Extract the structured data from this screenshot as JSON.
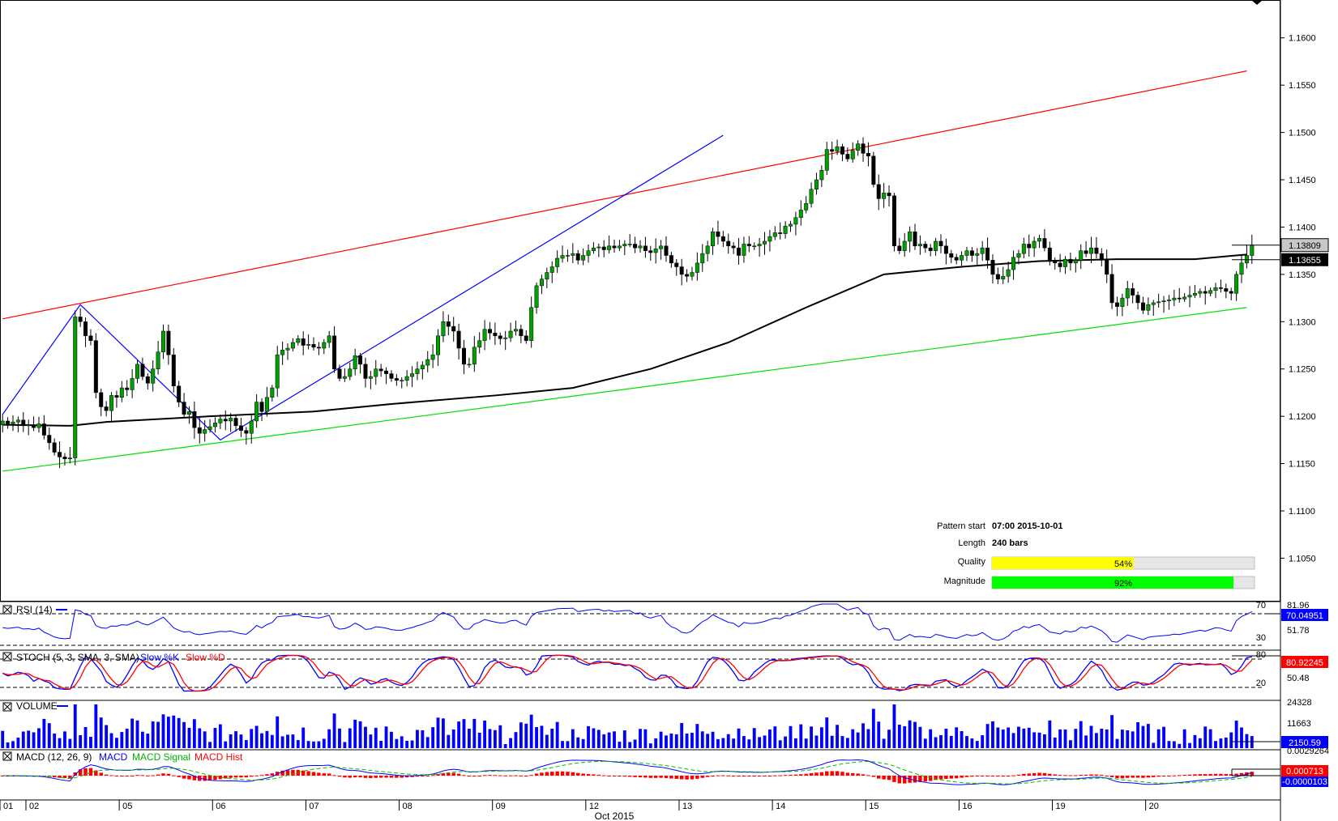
{
  "chart_data": {
    "type": "candlestick",
    "main": {
      "y_ticks": [
        "1.1600",
        "1.1550",
        "1.1500",
        "1.1450",
        "1.1400",
        "1.1350",
        "1.1300",
        "1.1250",
        "1.1200",
        "1.1150",
        "1.1100",
        "1.1050"
      ],
      "ylim": [
        1.1005,
        1.164
      ],
      "last_price": "1.13809",
      "ma_value": "1.13655",
      "resistance_line": {
        "from": [
          0,
          1.1303
        ],
        "to": [
          240,
          1.1565
        ]
      },
      "support_line": {
        "from": [
          0,
          1.1142
        ],
        "to": [
          240,
          1.1315
        ]
      },
      "pattern_points": [
        [
          0,
          1.1202
        ],
        [
          15,
          1.1318
        ],
        [
          42,
          1.1175
        ],
        [
          139,
          1.1497
        ]
      ],
      "ma_path": [
        [
          0,
          1.1191
        ],
        [
          13,
          1.119
        ],
        [
          20,
          1.1194
        ],
        [
          40,
          1.12
        ],
        [
          60,
          1.1205
        ],
        [
          75,
          1.1213
        ],
        [
          95,
          1.1222
        ],
        [
          110,
          1.123
        ],
        [
          125,
          1.125
        ],
        [
          140,
          1.1278
        ],
        [
          155,
          1.1315
        ],
        [
          170,
          1.135
        ],
        [
          185,
          1.1358
        ],
        [
          200,
          1.1364
        ],
        [
          215,
          1.1366
        ],
        [
          230,
          1.1366
        ],
        [
          240,
          1.1371
        ]
      ],
      "closes": [
        1.1195,
        1.1192,
        1.1194,
        1.1196,
        1.119,
        1.1191,
        1.1188,
        1.1192,
        1.118,
        1.1172,
        1.1162,
        1.1157,
        1.1155,
        1.1156,
        1.1305,
        1.13,
        1.1285,
        1.128,
        1.1225,
        1.121,
        1.1206,
        1.1222,
        1.122,
        1.123,
        1.1228,
        1.124,
        1.1255,
        1.1242,
        1.1235,
        1.125,
        1.1268,
        1.129,
        1.1265,
        1.1232,
        1.1215,
        1.1202,
        1.1205,
        1.1188,
        1.1182,
        1.1186,
        1.1189,
        1.1193,
        1.1197,
        1.1195,
        1.1198,
        1.119,
        1.1185,
        1.1182,
        1.1195,
        1.1215,
        1.1205,
        1.122,
        1.123,
        1.1265,
        1.127,
        1.1272,
        1.1278,
        1.1282,
        1.1275,
        1.1276,
        1.1273,
        1.1272,
        1.1278,
        1.1285,
        1.125,
        1.124,
        1.1242,
        1.125,
        1.1264,
        1.1255,
        1.124,
        1.1242,
        1.125,
        1.1248,
        1.1245,
        1.124,
        1.1238,
        1.1238,
        1.1242,
        1.1245,
        1.125,
        1.1254,
        1.126,
        1.1265,
        1.1285,
        1.13,
        1.1295,
        1.129,
        1.1272,
        1.1255,
        1.1255,
        1.1273,
        1.128,
        1.1292,
        1.1288,
        1.1285,
        1.1282,
        1.1283,
        1.129,
        1.1292,
        1.1285,
        1.128,
        1.1315,
        1.1338,
        1.1345,
        1.1352,
        1.1358,
        1.1367,
        1.137,
        1.137,
        1.1372,
        1.1365,
        1.137,
        1.1375,
        1.1378,
        1.1379,
        1.1376,
        1.138,
        1.1378,
        1.138,
        1.1382,
        1.1382,
        1.1378,
        1.138,
        1.1375,
        1.1373,
        1.1377,
        1.138,
        1.137,
        1.1362,
        1.1358,
        1.135,
        1.1348,
        1.1352,
        1.1362,
        1.1372,
        1.138,
        1.1395,
        1.139,
        1.1385,
        1.138,
        1.1378,
        1.137,
        1.1382,
        1.138,
        1.138,
        1.1382,
        1.1385,
        1.139,
        1.1394,
        1.1393,
        1.1401,
        1.1403,
        1.141,
        1.1418,
        1.1425,
        1.144,
        1.145,
        1.146,
        1.1482,
        1.148,
        1.1485,
        1.1477,
        1.1472,
        1.1481,
        1.1488,
        1.1478,
        1.1475,
        1.1445,
        1.143,
        1.1436,
        1.1433,
        1.138,
        1.1375,
        1.1385,
        1.1395,
        1.138,
        1.1382,
        1.1378,
        1.1375,
        1.1385,
        1.138,
        1.1372,
        1.1368,
        1.1365,
        1.137,
        1.1375,
        1.137,
        1.1372,
        1.1378,
        1.1365,
        1.135,
        1.1345,
        1.1348,
        1.1355,
        1.1368,
        1.1372,
        1.1382,
        1.1378,
        1.1385,
        1.1388,
        1.1378,
        1.1365,
        1.1362,
        1.1358,
        1.1366,
        1.1362,
        1.1365,
        1.1375,
        1.1372,
        1.1378,
        1.1372,
        1.1365,
        1.135,
        1.132,
        1.1316,
        1.1325,
        1.1335,
        1.1328,
        1.132,
        1.1312,
        1.1318,
        1.132,
        1.1321,
        1.1322,
        1.1323,
        1.1325,
        1.1324,
        1.1326,
        1.1328,
        1.133,
        1.1332,
        1.133,
        1.1333,
        1.1336,
        1.1335,
        1.1332,
        1.133,
        1.135,
        1.1362,
        1.137,
        1.1381
      ]
    },
    "x_labels": [
      {
        "label": "01",
        "bar": 0
      },
      {
        "label": "02",
        "bar": 5
      },
      {
        "label": "05",
        "bar": 23
      },
      {
        "label": "06",
        "bar": 41
      },
      {
        "label": "07",
        "bar": 59
      },
      {
        "label": "08",
        "bar": 77
      },
      {
        "label": "09",
        "bar": 95
      },
      {
        "label": "12",
        "bar": 113
      },
      {
        "label": "13",
        "bar": 131
      },
      {
        "label": "14",
        "bar": 149
      },
      {
        "label": "15",
        "bar": 167
      },
      {
        "label": "16",
        "bar": 185
      },
      {
        "label": "19",
        "bar": 203
      },
      {
        "label": "20",
        "bar": 221
      }
    ],
    "x_axis_title": "Oct 2015",
    "pattern_info": {
      "start_label": "Pattern start",
      "start_value": "07:00 2015-10-01",
      "length_label": "Length",
      "length_value": "240 bars",
      "quality_label": "Quality",
      "quality_value": "54%",
      "quality_fraction": 0.54,
      "magnitude_label": "Magnitude",
      "magnitude_value": "92%",
      "magnitude_fraction": 0.92
    },
    "indicators": {
      "rsi": {
        "title": "RSI (14)",
        "levels": [
          "70",
          "30"
        ],
        "axis_labels": [
          "81.96",
          "51.78"
        ],
        "value": "70.04951"
      },
      "stoch": {
        "title": "STOCH (5, 3, SMA, 3, SMA)",
        "series": [
          "Slow %K",
          "Slow %D"
        ],
        "levels": [
          "80",
          "20"
        ],
        "axis_labels": [
          "50.48"
        ],
        "value": "80.92245"
      },
      "volume": {
        "title": "VOLUME",
        "axis_labels": [
          "24328",
          "11663"
        ],
        "value": "2150.59"
      },
      "macd": {
        "title": "MACD (12, 26, 9)",
        "series": [
          "MACD",
          "MACD Signal",
          "MACD Hist"
        ],
        "axis_labels": [
          "0.0029264"
        ],
        "value1": "0.000713",
        "value2": "-0.0000103"
      }
    },
    "colors": {
      "up": "#00a000",
      "down": "#000000",
      "resistance": "#ff0000",
      "support": "#00e000",
      "pattern": "#0000ff",
      "ma": "#000000",
      "quality": "#ffff00",
      "magnitude": "#00ff00"
    }
  }
}
